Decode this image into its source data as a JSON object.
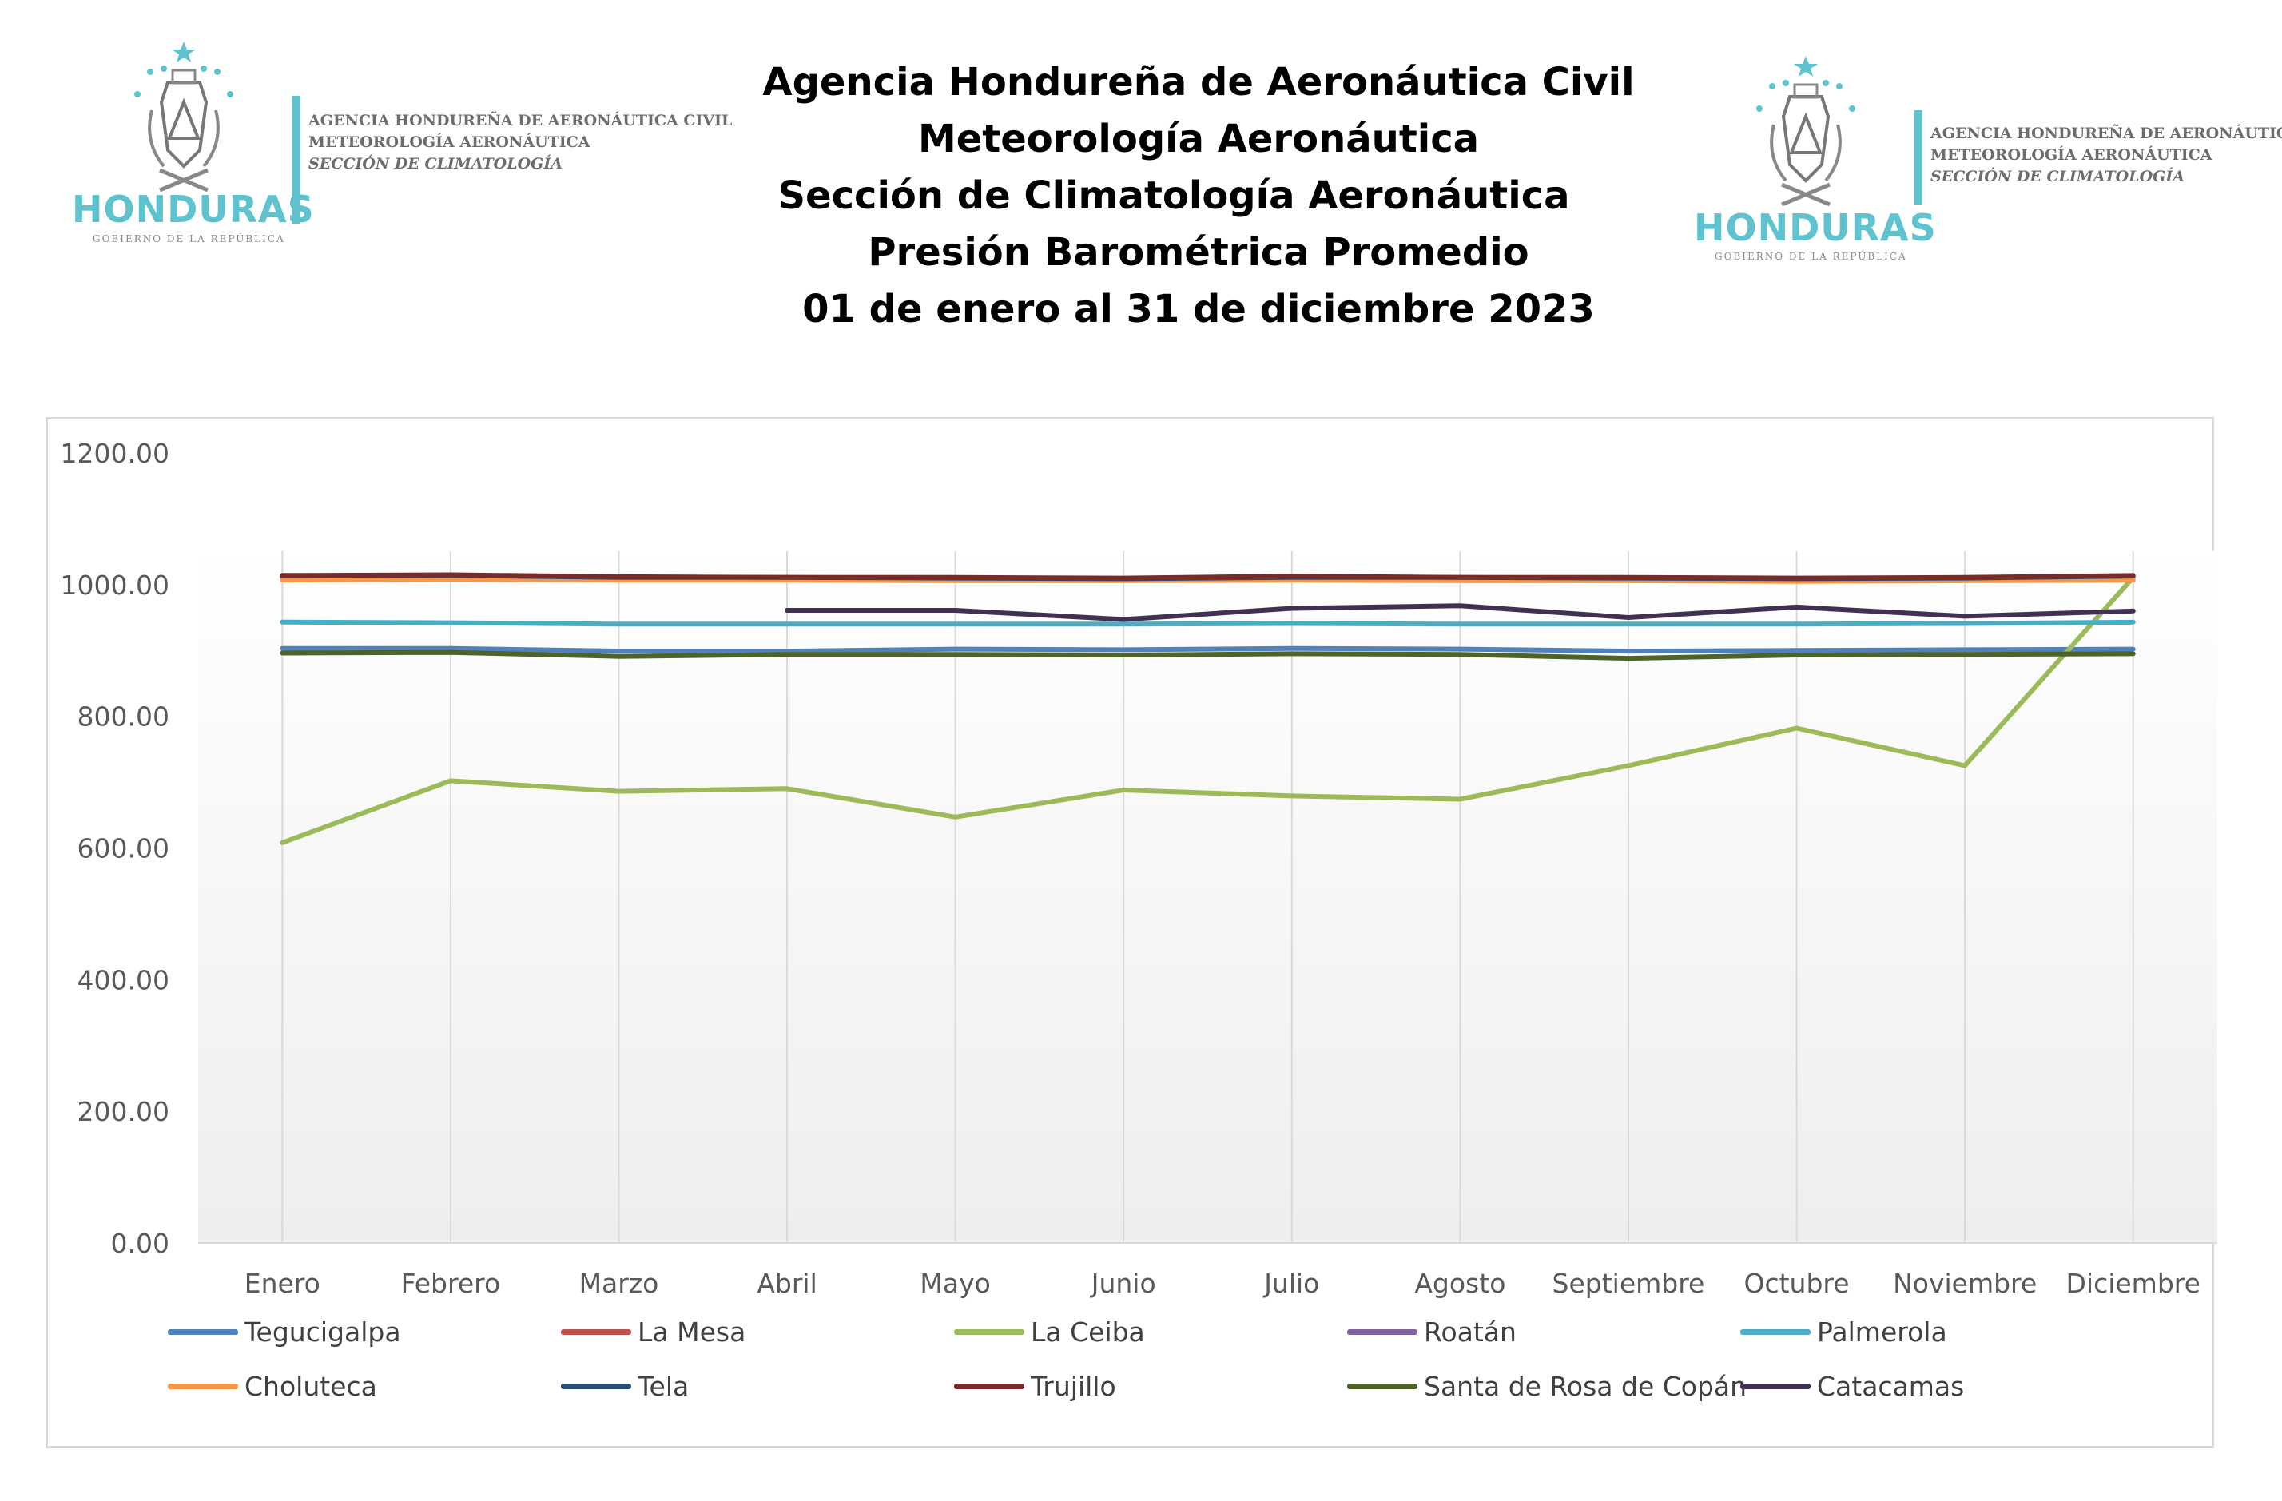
{
  "header": {
    "title_lines": [
      "Agencia Hondureña de Aeronáutica Civil",
      "Meteorología Aeronáutica",
      "Sección de Climatología Aeronáutica",
      "Presión Barométrica Promedio",
      "01 de enero al 31 de diciembre 2023"
    ]
  },
  "logo": {
    "wordmark": "HONDURAS",
    "subtitle": "GOBIERNO DE LA REPÚBLICA",
    "agency_lines": [
      "AGENCIA HONDUREÑA DE AERONÁUTICA CIVIL",
      "METEOROLOGÍA AERONÁUTICA",
      "SECCIÓN DE CLIMATOLOGÍA"
    ],
    "brand_color": "#5fc3cf"
  },
  "chart_data": {
    "type": "line",
    "categories": [
      "Enero",
      "Febrero",
      "Marzo",
      "Abril",
      "Mayo",
      "Junio",
      "Julio",
      "Agosto",
      "Septiembre",
      "Octubre",
      "Noviembre",
      "Diciembre"
    ],
    "ylim": [
      0,
      1200
    ],
    "yticks": [
      "0.00",
      "200.00",
      "400.00",
      "600.00",
      "800.00",
      "1000.00",
      "1200.00"
    ],
    "grid": "vertical",
    "legend_position": "bottom",
    "series": [
      {
        "name": "Tegucigalpa",
        "color": "#4f81bd",
        "values": [
          903,
          903,
          899,
          899,
          902,
          901,
          903,
          902,
          899,
          900,
          901,
          902
        ]
      },
      {
        "name": "La Mesa",
        "color": "#c0504d",
        "values": [
          1011,
          1012,
          1010,
          1010,
          1009,
          1008,
          1010,
          1010,
          1009,
          1008,
          1009,
          1011
        ]
      },
      {
        "name": "La Ceiba",
        "color": "#9bbb59",
        "values": [
          608,
          702,
          686,
          690,
          647,
          688,
          679,
          674,
          725,
          782,
          725,
          1011
        ]
      },
      {
        "name": "Roatán",
        "color": "#8064a2",
        "values": [
          1012,
          1013,
          1011,
          1010,
          1010,
          1009,
          1011,
          1010,
          1010,
          1009,
          1010,
          1012
        ]
      },
      {
        "name": "Palmerola",
        "color": "#4bacc6",
        "values": [
          943,
          942,
          940,
          940,
          940,
          940,
          941,
          940,
          940,
          940,
          941,
          943
        ]
      },
      {
        "name": "Choluteca",
        "color": "#f79646",
        "values": [
          1007,
          1008,
          1007,
          1007,
          1006,
          1006,
          1007,
          1006,
          1006,
          1005,
          1006,
          1007
        ]
      },
      {
        "name": "Tela",
        "color": "#2c4d75",
        "values": [
          1013,
          1014,
          1011,
          1011,
          1010,
          1009,
          1011,
          1011,
          1010,
          1009,
          1010,
          1013
        ]
      },
      {
        "name": "Trujillo",
        "color": "#772c2a",
        "values": [
          1014,
          1015,
          1012,
          1011,
          1011,
          1010,
          1013,
          1011,
          1011,
          1010,
          1011,
          1014
        ]
      },
      {
        "name": "Santa de Rosa de Copán",
        "color": "#4f6228",
        "values": [
          896,
          897,
          891,
          894,
          894,
          893,
          895,
          894,
          888,
          893,
          894,
          895
        ]
      },
      {
        "name": "Catacamas",
        "color": "#403152",
        "values": [
          null,
          null,
          null,
          961,
          961,
          947,
          964,
          968,
          950,
          966,
          952,
          960
        ]
      }
    ]
  }
}
